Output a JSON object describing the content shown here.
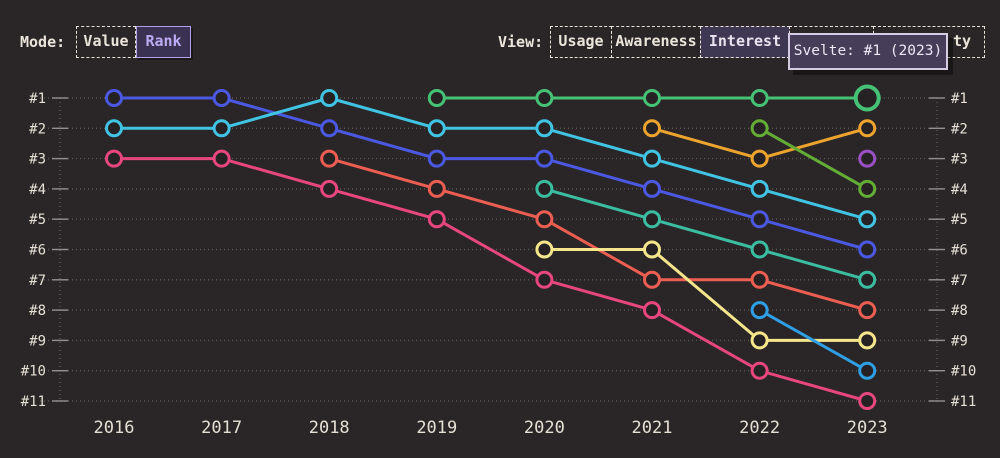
{
  "page": {
    "background": "#2a2627",
    "text_color": "#ece5dc"
  },
  "toolbar": {
    "mode": {
      "label": "Mode:",
      "options": [
        {
          "label": "Value",
          "selected": false
        },
        {
          "label": "Rank",
          "selected": true
        }
      ]
    },
    "view": {
      "label": "View:",
      "options": [
        {
          "label": "Usage",
          "selected": false
        },
        {
          "label": "Awareness",
          "selected": false
        },
        {
          "label": "Interest",
          "selected": true
        },
        {
          "label": "",
          "selected": false,
          "covered_by_tooltip": true
        },
        {
          "label": "ty",
          "selected": false,
          "partially_covered_by_tooltip": true
        }
      ]
    }
  },
  "tooltip": {
    "text": "Svelte: #1 (2023)",
    "background": "#463e58",
    "border_color": "#d5cce2"
  },
  "chart_data": {
    "type": "line",
    "subtype": "bump-rank-chart",
    "title": "",
    "xlabel": "",
    "ylabel": "",
    "x_labels": [
      "2016",
      "2017",
      "2018",
      "2019",
      "2020",
      "2021",
      "2022",
      "2023"
    ],
    "y_tick_labels": [
      "#1",
      "#2",
      "#3",
      "#4",
      "#5",
      "#6",
      "#7",
      "#8",
      "#9",
      "#10",
      "#11"
    ],
    "y_axis_sides": "both",
    "ylim": [
      1,
      11
    ],
    "grid": "dotted-horizontal",
    "legend": "none",
    "highlight": {
      "series": "svelte",
      "x_label": "2023",
      "rank": 1
    },
    "series": [
      {
        "name": "series-royal-blue",
        "color": "#4b58e2",
        "ranks": [
          1,
          1,
          2,
          3,
          3,
          4,
          5,
          6
        ]
      },
      {
        "name": "series-cyan",
        "color": "#41c4e3",
        "ranks": [
          2,
          2,
          1,
          2,
          2,
          3,
          4,
          5
        ]
      },
      {
        "name": "series-pink",
        "color": "#e7467e",
        "ranks": [
          3,
          3,
          4,
          5,
          7,
          8,
          10,
          11
        ]
      },
      {
        "name": "series-coral-red",
        "color": "#ec5e51",
        "ranks": [
          null,
          null,
          3,
          4,
          5,
          7,
          7,
          8
        ]
      },
      {
        "name": "svelte",
        "color": "#46c276",
        "ranks": [
          null,
          null,
          null,
          1,
          1,
          1,
          1,
          1
        ],
        "highlight_last": true
      },
      {
        "name": "series-teal",
        "color": "#3abda0",
        "ranks": [
          null,
          null,
          null,
          null,
          4,
          5,
          6,
          7
        ]
      },
      {
        "name": "series-yellow",
        "color": "#f5e68c",
        "ranks": [
          null,
          null,
          null,
          null,
          6,
          6,
          9,
          9
        ]
      },
      {
        "name": "series-orange",
        "color": "#eca42f",
        "ranks": [
          null,
          null,
          null,
          null,
          null,
          2,
          3,
          2
        ]
      },
      {
        "name": "series-green",
        "color": "#63ad36",
        "ranks": [
          null,
          null,
          null,
          null,
          null,
          null,
          2,
          4
        ]
      },
      {
        "name": "series-azure",
        "color": "#2f9fe5",
        "ranks": [
          null,
          null,
          null,
          null,
          null,
          null,
          8,
          10
        ]
      },
      {
        "name": "series-purple",
        "color": "#9b51c5",
        "ranks": [
          null,
          null,
          null,
          null,
          null,
          null,
          null,
          3
        ]
      }
    ],
    "axis": {
      "grid_color": "#5c5657",
      "tick_color": "#968f90",
      "label_color": "#e6dfd5",
      "marker_fill": "#262223"
    }
  }
}
